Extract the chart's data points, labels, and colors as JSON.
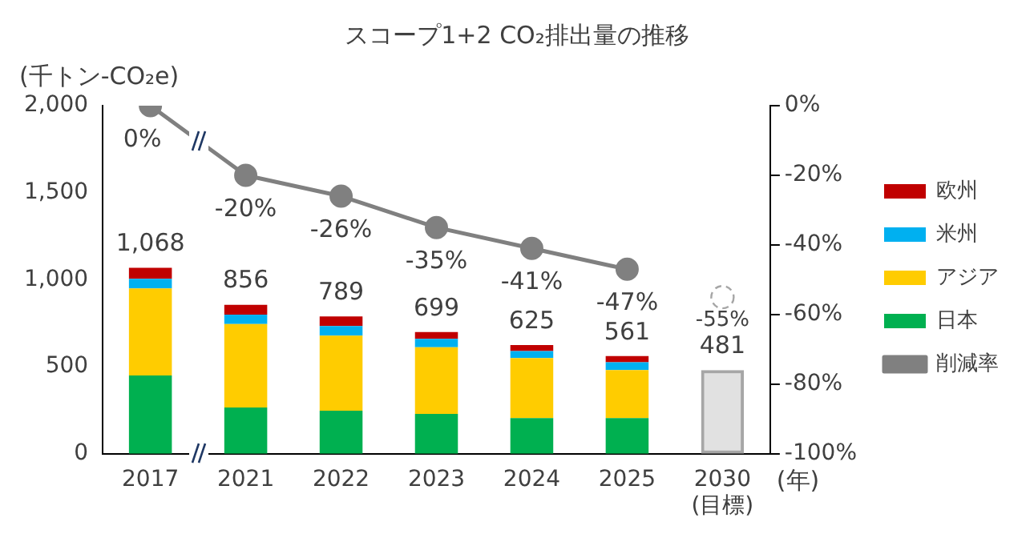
{
  "chart_data": {
    "type": "bar",
    "title": "スコープ1+2 CO₂排出量の推移",
    "ylabel": "(千トン-CO₂e)",
    "xlabel": "(年)",
    "categories": [
      "2017",
      "2021",
      "2022",
      "2023",
      "2024",
      "2025",
      "2030\n(目標)"
    ],
    "stacked": true,
    "legend": "right",
    "grid": false,
    "ylim": [
      0,
      2000
    ],
    "yticks": [
      0,
      500,
      {
        "value": 1000,
        "label": "1,000"
      },
      {
        "value": 1500,
        "label": "1,500"
      },
      {
        "value": 2000,
        "label": "2,000"
      }
    ],
    "y2lim": [
      -100,
      0
    ],
    "y2ticks": [
      {
        "value": 0,
        "label": "0%"
      },
      {
        "value": -20,
        "label": "-20%"
      },
      {
        "value": -40,
        "label": "-40%"
      },
      {
        "value": -60,
        "label": "-60%"
      },
      {
        "value": -80,
        "label": "-80%"
      },
      {
        "value": -100,
        "label": "-100%"
      }
    ],
    "series": [
      {
        "name": "日本",
        "color": "#00b050",
        "values": [
          450,
          266,
          248,
          229,
          205,
          205,
          null
        ]
      },
      {
        "name": "アジア",
        "color": "#ffcc00",
        "values": [
          500,
          479,
          431,
          383,
          345,
          276,
          null
        ]
      },
      {
        "name": "米州",
        "color": "#00b0f0",
        "values": [
          55,
          55,
          55,
          48,
          40,
          45,
          null
        ]
      },
      {
        "name": "欧州",
        "color": "#c00000",
        "values": [
          63,
          56,
          55,
          39,
          35,
          35,
          null
        ]
      },
      {
        "color": "#a6a6a6",
        "line_style": "dashed",
        "values": [
          null,
          null,
          null,
          null,
          null,
          null,
          481
        ]
      },
      {
        "name": "削減率",
        "type": "line",
        "axis": "y2",
        "color": "#808080",
        "marker": "circle",
        "values": [
          0,
          -20,
          -26,
          -35,
          -41,
          -47,
          null
        ],
        "value_labels": [
          "0%",
          "-20%",
          "-26%",
          "-35%",
          "-41%",
          "-47%",
          null
        ]
      },
      {
        "type": "scatter",
        "axis": "y2",
        "color": "#a6a6a6",
        "marker": "circle",
        "line_style": "dashed",
        "values": [
          null,
          null,
          null,
          null,
          null,
          null,
          -55
        ],
        "value_labels": [
          null,
          null,
          null,
          null,
          null,
          null,
          "-55%"
        ]
      }
    ],
    "totals": [
      "1,068",
      "856",
      "789",
      "699",
      "625",
      "561",
      "481"
    ]
  }
}
